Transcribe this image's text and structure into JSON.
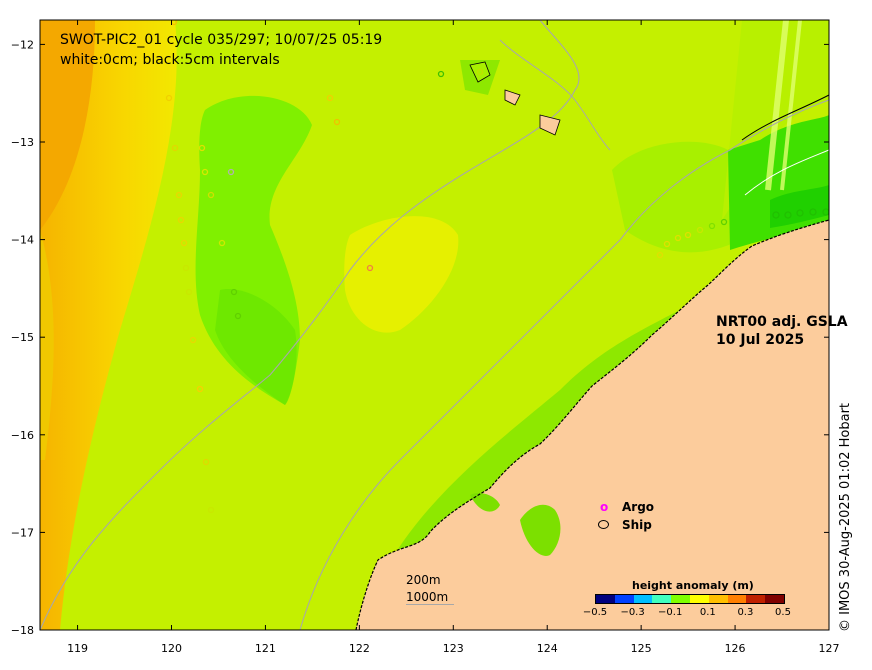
{
  "title_line1": "SWOT-PIC2_01 cycle 035/297; 10/07/25 05:19",
  "title_line2": "white:0cm; black:5cm intervals",
  "product_line1": "NRT00 adj. GSLA",
  "product_line2": "10 Jul 2025",
  "credit": "© IMOS 30-Aug-2025 01:02 Hobart",
  "legend": {
    "argo_symbol": "o",
    "argo_label": "Argo",
    "ship_label": "Ship",
    "argo_color": "#ff00ff",
    "ship_color": "#000000"
  },
  "scale_labels": [
    "200m",
    "1000m"
  ],
  "colorbar": {
    "title": "height anomaly (m)",
    "ticks": [
      "−0.5",
      "−0.3",
      "−0.1",
      "0.1",
      "0.3",
      "0.5"
    ],
    "colors": [
      "#00007f",
      "#0040ff",
      "#00bfff",
      "#40ffbf",
      "#80ff00",
      "#ffff00",
      "#ffbf00",
      "#ff7f00",
      "#bf2000",
      "#7f0000"
    ]
  },
  "x_ticks": [
    "119",
    "120",
    "121",
    "122",
    "123",
    "124",
    "125",
    "126",
    "127"
  ],
  "y_ticks": [
    "−12",
    "−13",
    "−14",
    "−15",
    "−16",
    "−17",
    "−18"
  ],
  "chart_data": {
    "type": "heatmap",
    "xlim": [
      118.6,
      127
    ],
    "ylim": [
      -18,
      -11.75
    ],
    "land_color": "#fccc9c"
  }
}
